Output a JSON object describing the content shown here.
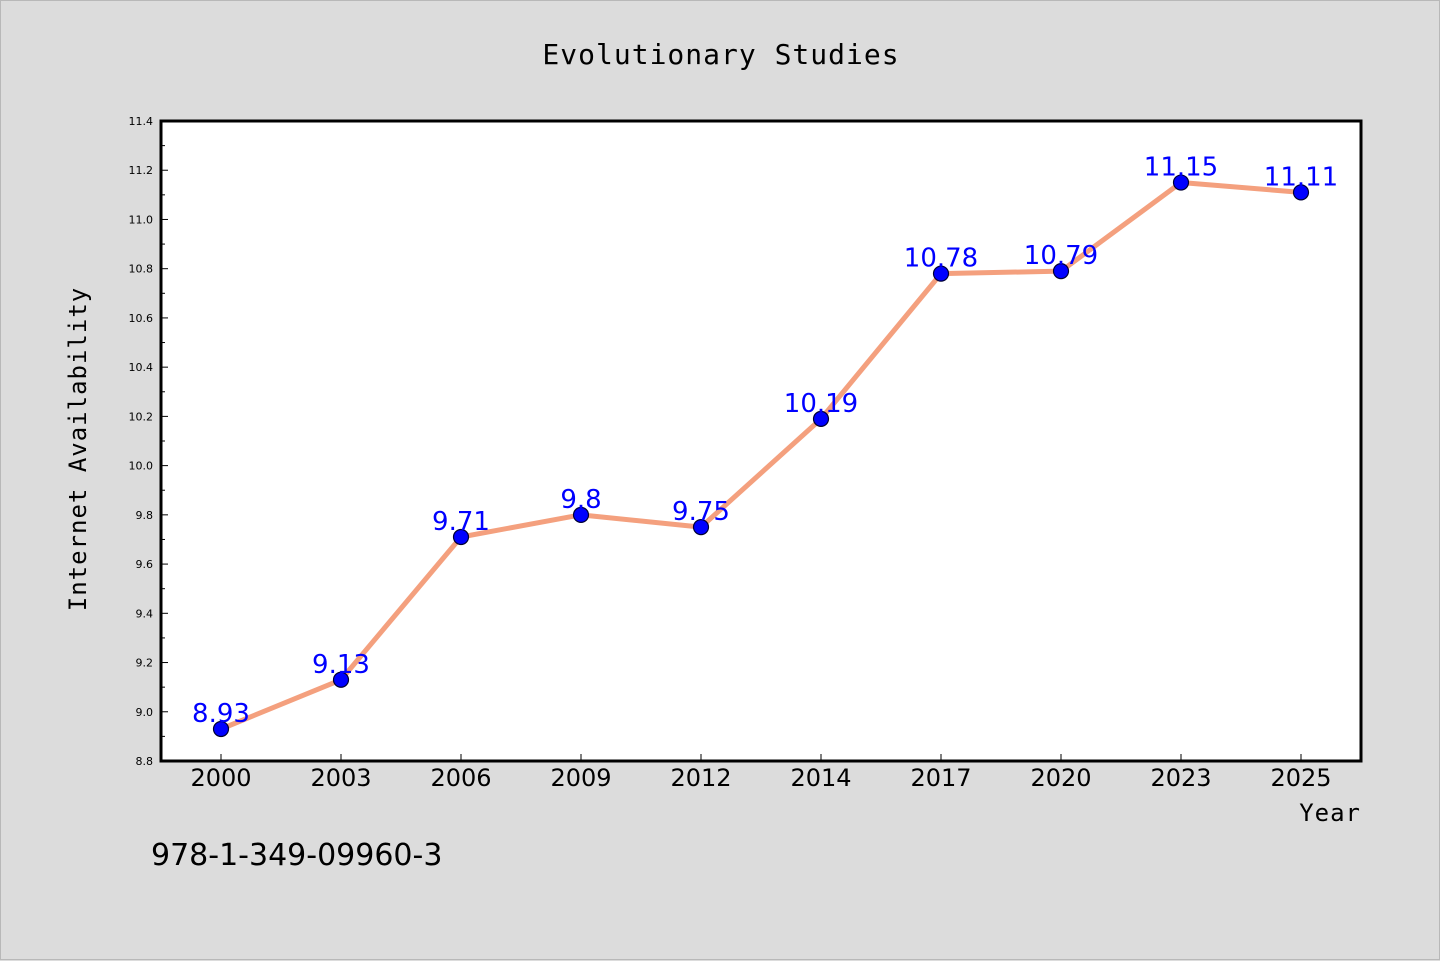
{
  "chart_data": {
    "type": "line",
    "title": "Evolutionary Studies",
    "xlabel": "Year",
    "ylabel": "Internet Availability",
    "categories": [
      "2000",
      "2003",
      "2006",
      "2009",
      "2012",
      "2014",
      "2017",
      "2020",
      "2023",
      "2025"
    ],
    "series": [
      {
        "values": [
          8.93,
          9.13,
          9.71,
          9.8,
          9.75,
          10.19,
          10.78,
          10.79,
          11.15,
          11.11
        ],
        "data_labels": [
          "8.93",
          "9.13",
          "9.71",
          "9.8",
          "9.75",
          "10.19",
          "10.78",
          "10.79",
          "11.15",
          "11.11"
        ]
      }
    ],
    "ylim": [
      8.8,
      11.4
    ],
    "yticks": [
      "8.8",
      "9.0",
      "9.2",
      "9.4",
      "9.6",
      "9.8",
      "10.0",
      "10.2",
      "10.4",
      "10.6",
      "10.8",
      "11.0",
      "11.2",
      "11.4"
    ],
    "grid": false,
    "legend": "none",
    "line_color": "#f4a07e",
    "marker_color": "#0000ff",
    "label_color": "#0000ff"
  },
  "footnote": "978-1-349-09960-3"
}
